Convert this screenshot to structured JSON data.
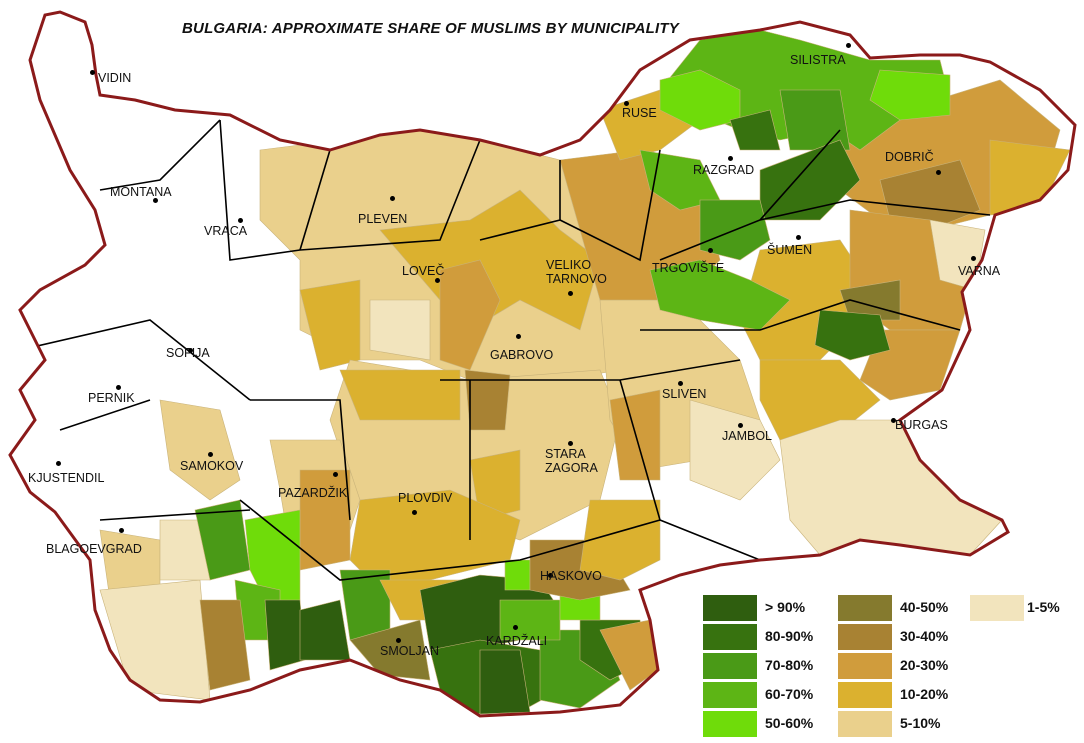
{
  "title": "BULGARIA: APPROXIMATE SHARE OF MUSLIMS BY MUNICIPALITY",
  "legend": [
    {
      "label": "> 90%",
      "color": "#2f5e0f"
    },
    {
      "label": "80-90%",
      "color": "#37720f"
    },
    {
      "label": "70-80%",
      "color": "#4a9a17"
    },
    {
      "label": "60-70%",
      "color": "#5db515"
    },
    {
      "label": "50-60%",
      "color": "#6fdc0a"
    },
    {
      "label": "40-50%",
      "color": "#857a2e"
    },
    {
      "label": "30-40%",
      "color": "#a88233"
    },
    {
      "label": "20-30%",
      "color": "#d09c3c"
    },
    {
      "label": "10-20%",
      "color": "#dbb12f"
    },
    {
      "label": "5-10%",
      "color": "#ead08c"
    },
    {
      "label": "1-5%",
      "color": "#f2e4bd"
    }
  ],
  "border_color": "#8b1a1a",
  "cities": [
    {
      "name": "VIDIN"
    },
    {
      "name": "MONTANA"
    },
    {
      "name": "VRACA"
    },
    {
      "name": "PLEVEN"
    },
    {
      "name": "LOVEČ"
    },
    {
      "name": "VELIKO\nTARNOVO"
    },
    {
      "name": "GABROVO"
    },
    {
      "name": "RUSE"
    },
    {
      "name": "SILISTRA"
    },
    {
      "name": "DOBRIČ"
    },
    {
      "name": "RAZGRAD"
    },
    {
      "name": "ŠUMEN"
    },
    {
      "name": "VARNA"
    },
    {
      "name": "TRGOVIŠTE"
    },
    {
      "name": "SOFIJA"
    },
    {
      "name": "PERNIK"
    },
    {
      "name": "KJUSTENDIL"
    },
    {
      "name": "SAMOKOV"
    },
    {
      "name": "PAZARDŽIK"
    },
    {
      "name": "PLOVDIV"
    },
    {
      "name": "STARA\nZAGORA"
    },
    {
      "name": "SLIVEN"
    },
    {
      "name": "JAMBOL"
    },
    {
      "name": "BURGAS"
    },
    {
      "name": "HASKOVO"
    },
    {
      "name": "SMOLJAN"
    },
    {
      "name": "KARDŽALI"
    },
    {
      "name": "BLAGOEVGRAD"
    }
  ]
}
